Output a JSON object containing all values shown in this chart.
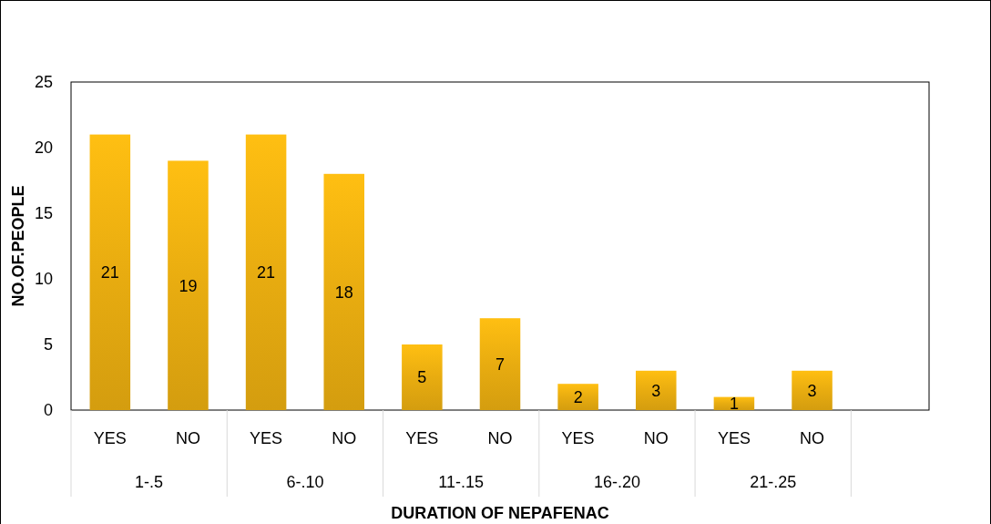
{
  "chart_data": {
    "type": "bar",
    "xlabel": "DURATION OF NEPAFENAC",
    "ylabel": "NO.OF.PEOPLE",
    "categories": [
      "YES",
      "NO",
      "YES",
      "NO",
      "YES",
      "NO",
      "YES",
      "NO",
      "YES",
      "NO",
      null
    ],
    "values": [
      21,
      19,
      21,
      18,
      5,
      7,
      2,
      3,
      1,
      3,
      null
    ],
    "color": "#e8ac10",
    "ylim": [
      0,
      25
    ],
    "yticks": [
      0,
      5,
      10,
      15,
      20,
      25
    ],
    "annotations": [
      "1-.5",
      "6-.10",
      "11-.15",
      "16-.20",
      "21-.25"
    ],
    "data_labels": true,
    "grid": false
  }
}
